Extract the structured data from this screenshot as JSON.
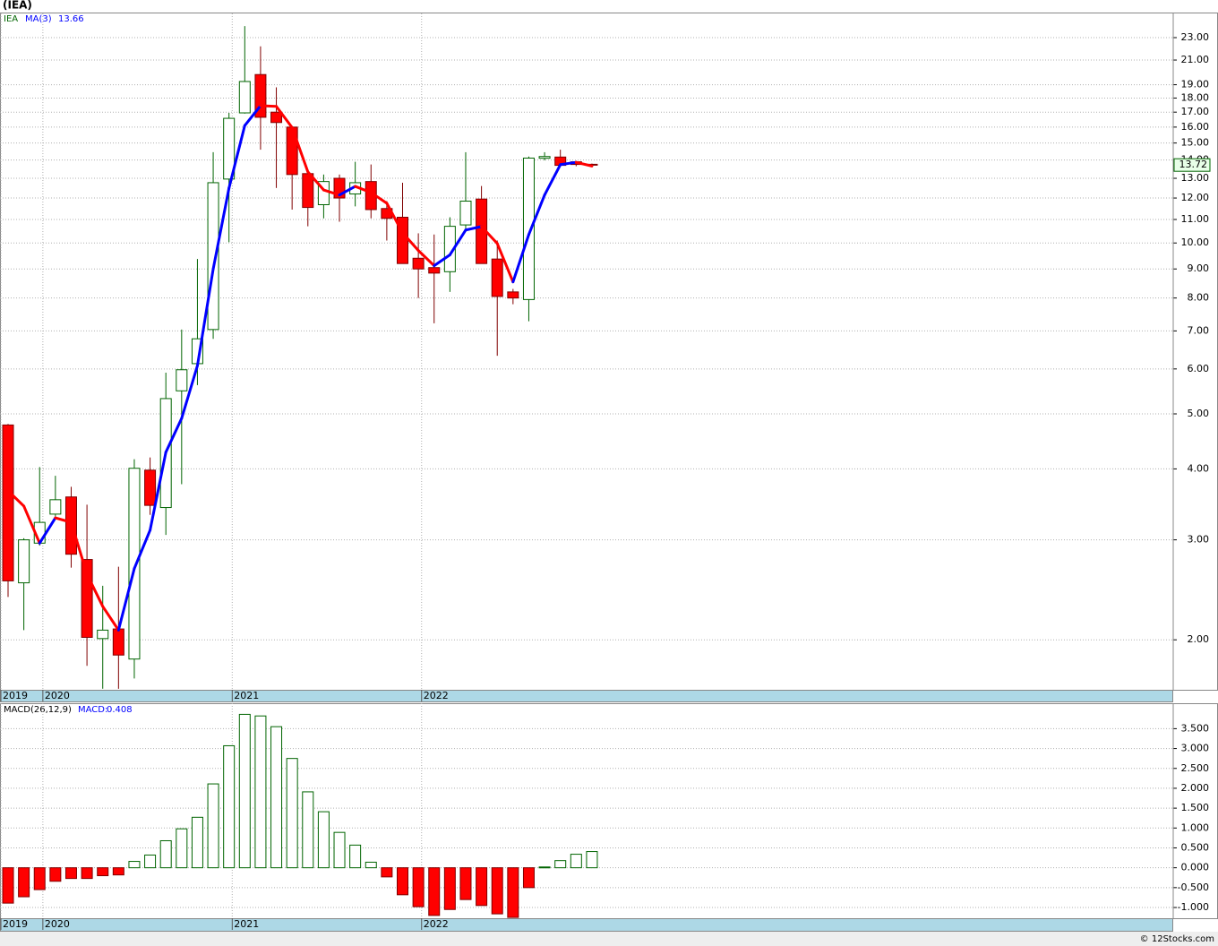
{
  "chart_data": [
    {
      "type": "candlestick",
      "title": "(IEA)",
      "symbol": "IEA",
      "log_scale": true,
      "grid": true,
      "categories": [
        "2019",
        null,
        null,
        "2020",
        null,
        null,
        null,
        null,
        null,
        null,
        null,
        null,
        null,
        null,
        null,
        "2021",
        null,
        null,
        null,
        null,
        null,
        null,
        null,
        null,
        null,
        null,
        null,
        "2022",
        null,
        null,
        null,
        null,
        null,
        null,
        null,
        null,
        null,
        null
      ],
      "open": [
        4.78,
        2.52,
        2.96,
        3.33,
        3.57,
        2.77,
        2.01,
        2.09,
        1.85,
        3.98,
        3.42,
        5.49,
        6.13,
        7.04,
        12.96,
        16.95,
        19.8,
        17.0,
        16.0,
        13.25,
        11.68,
        13.0,
        12.2,
        12.83,
        11.5,
        11.1,
        9.4,
        9.05,
        8.9,
        10.76,
        11.95,
        9.37,
        8.2,
        7.95,
        14.1,
        14.17,
        13.9,
        13.76
      ],
      "high": [
        4.8,
        3.02,
        4.03,
        3.89,
        3.72,
        3.46,
        2.49,
        2.69,
        4.16,
        4.19,
        5.91,
        7.04,
        9.37,
        14.45,
        16.95,
        24.1,
        22.2,
        18.8,
        16.0,
        13.4,
        13.2,
        13.2,
        13.9,
        13.75,
        11.85,
        12.77,
        10.4,
        10.35,
        11.1,
        14.45,
        12.6,
        10.1,
        8.3,
        14.2,
        14.45,
        14.6,
        13.95,
        13.8
      ],
      "low": [
        2.38,
        2.08,
        2.93,
        3.3,
        2.68,
        1.8,
        1.64,
        1.64,
        1.71,
        3.32,
        3.06,
        3.76,
        5.62,
        6.78,
        10.03,
        16.9,
        14.6,
        12.5,
        11.45,
        10.7,
        11.05,
        10.9,
        11.6,
        11.05,
        10.1,
        9.2,
        8.0,
        7.22,
        8.2,
        10.55,
        9.2,
        6.33,
        7.8,
        7.28,
        13.98,
        13.7,
        13.65,
        13.7
      ],
      "close": [
        2.54,
        3.0,
        3.22,
        3.53,
        2.83,
        2.02,
        2.08,
        1.88,
        4.01,
        3.45,
        5.32,
        5.98,
        6.78,
        12.77,
        16.58,
        19.25,
        16.65,
        16.3,
        13.2,
        11.55,
        12.83,
        12.0,
        12.77,
        11.45,
        11.05,
        9.2,
        9.0,
        8.85,
        10.7,
        11.85,
        9.2,
        8.05,
        8.0,
        14.11,
        14.2,
        13.7,
        13.75,
        13.72
      ],
      "up_color": "#006400",
      "down_color": "#ff0000",
      "ma": {
        "name": "MA(3)",
        "up_color": "#0000ff",
        "down_color": "#ff0000",
        "values": [
          3.66,
          3.44,
          2.96,
          3.28,
          3.22,
          2.61,
          2.29,
          2.08,
          2.67,
          3.12,
          4.28,
          4.91,
          6.08,
          9.0,
          12.49,
          16.1,
          17.45,
          17.4,
          15.97,
          13.34,
          12.4,
          12.15,
          12.58,
          12.27,
          11.75,
          10.42,
          9.7,
          9.12,
          9.53,
          10.54,
          10.69,
          9.98,
          8.54,
          10.35,
          12.15,
          13.74,
          13.87,
          13.66
        ]
      },
      "ylim": [
        1.633,
        25.37
      ],
      "yticks": [
        {
          "value": 2,
          "label": "2.00"
        },
        {
          "value": 3,
          "label": "3.00"
        },
        {
          "value": 4,
          "label": "4.00"
        },
        {
          "value": 5,
          "label": "5.00"
        },
        {
          "value": 6,
          "label": "6.00"
        },
        {
          "value": 7,
          "label": "7.00"
        },
        {
          "value": 8,
          "label": "8.00"
        },
        {
          "value": 9,
          "label": "9.00"
        },
        {
          "value": 10,
          "label": "10.00"
        },
        {
          "value": 11,
          "label": "11.00"
        },
        {
          "value": 12,
          "label": "12.00"
        },
        {
          "value": 13,
          "label": "13.00"
        },
        {
          "value": 14,
          "label": "14.00"
        },
        {
          "value": 15,
          "label": "15.00"
        },
        {
          "value": 16,
          "label": "16.00"
        },
        {
          "value": 17,
          "label": "17.00"
        },
        {
          "value": 18,
          "label": "18.00"
        },
        {
          "value": 19,
          "label": "19.00"
        },
        {
          "value": 21,
          "label": "21.00"
        },
        {
          "value": 23,
          "label": "23.00"
        }
      ]
    },
    {
      "type": "bar",
      "name": "MACD(26,12,9)",
      "value_name": "MACD:",
      "grid": true,
      "categories": [
        "2019",
        null,
        null,
        "2020",
        null,
        null,
        null,
        null,
        null,
        null,
        null,
        null,
        null,
        null,
        null,
        "2021",
        null,
        null,
        null,
        null,
        null,
        null,
        null,
        null,
        null,
        null,
        null,
        "2022",
        null,
        null,
        null,
        null,
        null,
        null,
        null,
        null,
        null,
        null
      ],
      "values": [
        -0.89,
        -0.73,
        -0.55,
        -0.34,
        -0.27,
        -0.27,
        -0.2,
        -0.18,
        0.16,
        0.32,
        0.68,
        0.98,
        1.27,
        2.11,
        3.07,
        3.86,
        3.82,
        3.55,
        2.75,
        1.91,
        1.41,
        0.89,
        0.57,
        0.14,
        -0.23,
        -0.68,
        -0.98,
        -1.2,
        -1.05,
        -0.8,
        -0.95,
        -1.16,
        -1.25,
        -0.5,
        0.02,
        0.18,
        0.34,
        0.408
      ],
      "up_color": "#006400",
      "down_color": "#ff0000",
      "ylim": [
        -1.27,
        4.14
      ],
      "yticks": [
        {
          "value": -1,
          "label": "-1.000"
        },
        {
          "value": -0.5,
          "label": "-0.500"
        },
        {
          "value": 0,
          "label": "0.000"
        },
        {
          "value": 0.5,
          "label": "0.500"
        },
        {
          "value": 1,
          "label": "1.000"
        },
        {
          "value": 1.5,
          "label": "1.500"
        },
        {
          "value": 2,
          "label": "2.000"
        },
        {
          "value": 2.5,
          "label": "2.500"
        },
        {
          "value": 3,
          "label": "3.000"
        },
        {
          "value": 3.5,
          "label": "3.500"
        }
      ]
    }
  ],
  "footer": "© 12Stocks.com"
}
